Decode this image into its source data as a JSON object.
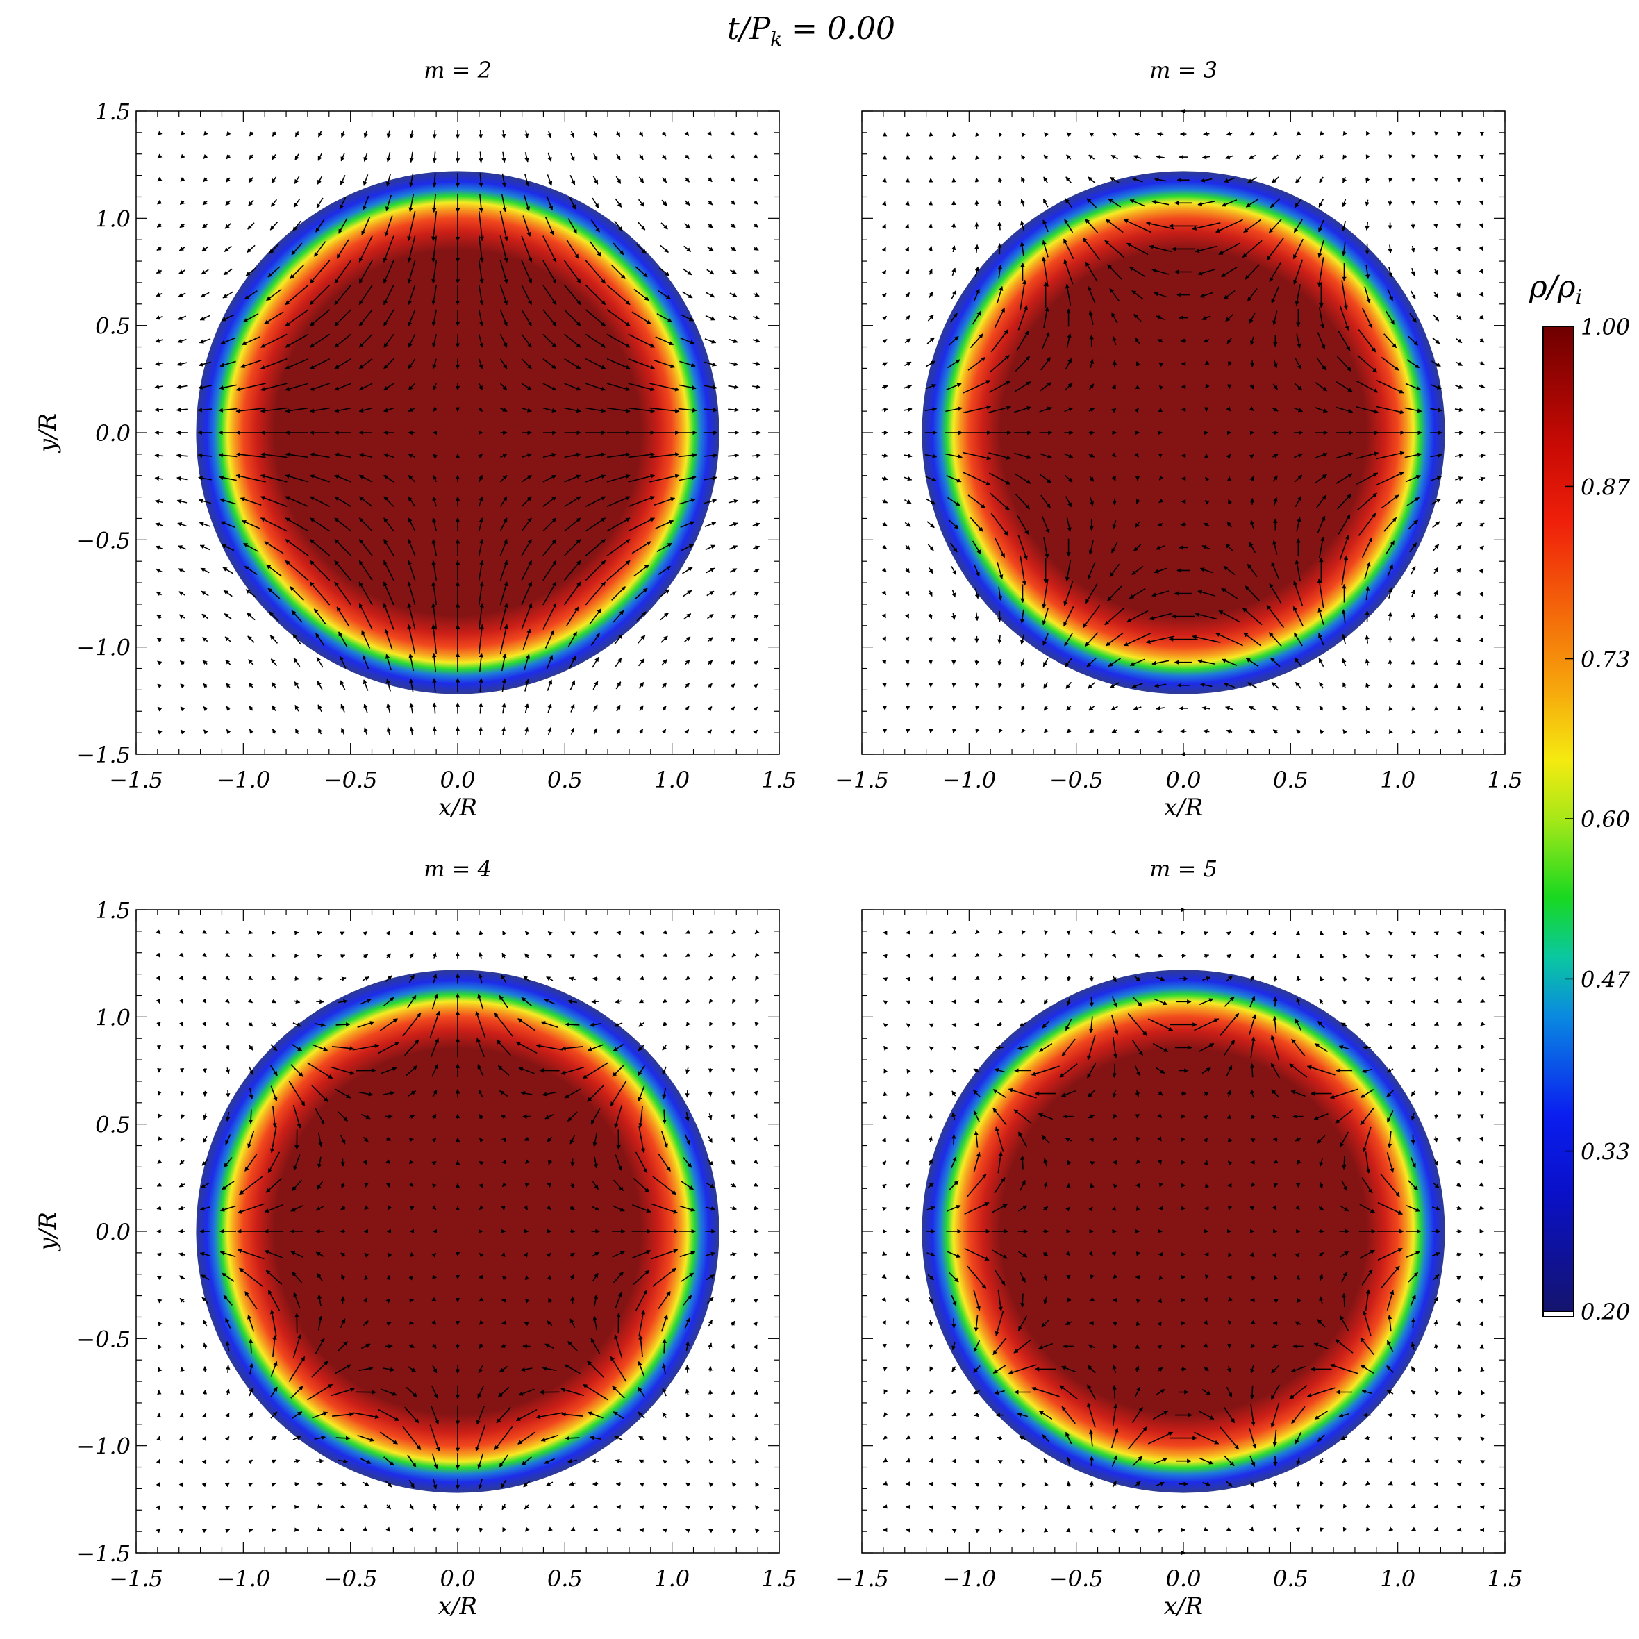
{
  "figure_title": "t/P_k = 0.00",
  "title_parts": {
    "t": "t/",
    "P": "P",
    "k": "k",
    "rest": " = 0.00"
  },
  "chart_data": [
    {
      "type": "heatmap",
      "title": "m = 2",
      "m": 2,
      "xlabel": "x/R",
      "ylabel": "y/R",
      "xlim": [
        -1.5,
        1.5
      ],
      "ylim": [
        -1.5,
        1.5
      ],
      "xticks": [
        "-1.5",
        "-1.0",
        "-0.5",
        "0.0",
        "0.5",
        "1.0",
        "1.5"
      ],
      "yticks": [
        "1.5",
        "1.0",
        "0.5",
        "0.0",
        "-0.5",
        "-1.0",
        "-1.5"
      ],
      "disk_radius": 1.22,
      "overlay": "velocity arrows (quiver)"
    },
    {
      "type": "heatmap",
      "title": "m = 3",
      "m": 3,
      "xlabel": "x/R",
      "ylabel": "",
      "xlim": [
        -1.5,
        1.5
      ],
      "ylim": [
        -1.5,
        1.5
      ],
      "xticks": [
        "-1.5",
        "-1.0",
        "-0.5",
        "0.0",
        "0.5",
        "1.0",
        "1.5"
      ],
      "yticks": [],
      "disk_radius": 1.22,
      "overlay": "velocity arrows (quiver)"
    },
    {
      "type": "heatmap",
      "title": "m = 4",
      "m": 4,
      "xlabel": "x/R",
      "ylabel": "y/R",
      "xlim": [
        -1.5,
        1.5
      ],
      "ylim": [
        -1.5,
        1.5
      ],
      "xticks": [
        "-1.5",
        "-1.0",
        "-0.5",
        "0.0",
        "0.5",
        "1.0",
        "1.5"
      ],
      "yticks": [
        "1.5",
        "1.0",
        "0.5",
        "0.0",
        "-0.5",
        "-1.0",
        "-1.5"
      ],
      "disk_radius": 1.22,
      "overlay": "velocity arrows (quiver)"
    },
    {
      "type": "heatmap",
      "title": "m = 5",
      "m": 5,
      "xlabel": "x/R",
      "ylabel": "",
      "xlim": [
        -1.5,
        1.5
      ],
      "ylim": [
        -1.5,
        1.5
      ],
      "xticks": [
        "-1.5",
        "-1.0",
        "-0.5",
        "0.0",
        "0.5",
        "1.0",
        "1.5"
      ],
      "yticks": [],
      "disk_radius": 1.22,
      "overlay": "velocity arrows (quiver)"
    }
  ],
  "colorbar": {
    "label": "ρ/ρ_i",
    "label_parts": {
      "rho": "ρ/ρ",
      "sub": "i"
    },
    "range": [
      0.2,
      1.0
    ],
    "ticks": [
      "1.00",
      "0.87",
      "0.73",
      "0.60",
      "0.47",
      "0.33",
      "0.20"
    ]
  },
  "colors": {
    "dark_red": "#7a0000",
    "red": "#e81a0a",
    "orange": "#f4820a",
    "yellow": "#f5ea10",
    "green": "#18d820",
    "blue": "#0a1ae8",
    "navy": "#1c1c8c"
  }
}
